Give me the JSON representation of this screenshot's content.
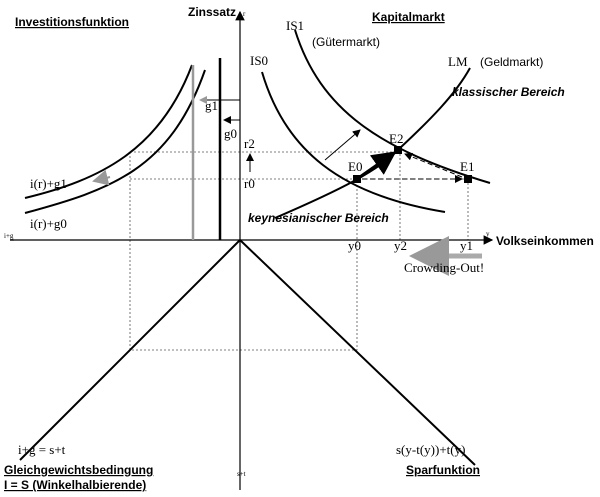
{
  "panels": {
    "investment": "Investitionsfunktion",
    "capital_market": "Kapitalmarkt",
    "equilibrium": "Gleichgewichtsbedingung",
    "equilibrium_rule": "I = S (Winkelhalbierende)",
    "savings": "Sparfunktion"
  },
  "axes": {
    "interest": "Zinssatz",
    "interest_symbol": "r",
    "income": "Volkseinkommen",
    "income_symbol": "y",
    "investment_symbol": "i+g",
    "savings_symbol": "s+t"
  },
  "curves": {
    "is1": "IS1",
    "goods_market": "(Gütermarkt)",
    "is0": "IS0",
    "lm": "LM",
    "money_market": "(Geldmarkt)",
    "classic": "klassischer Bereich",
    "keynes": "keynesianischer Bereich",
    "inv_g1": "i(r)+g1",
    "inv_g0": "i(r)+g0",
    "diag_left": "i+g = s+t",
    "diag_right": "s(y-t(y))+t(y)"
  },
  "points": {
    "g1": "g1",
    "g0": "g0",
    "r2": "r2",
    "r0": "r0",
    "e2": "E2",
    "e0": "E0",
    "e1": "E1",
    "y0": "y0",
    "y2": "y2",
    "y1": "y1"
  },
  "annotation": "Crowding-Out!"
}
